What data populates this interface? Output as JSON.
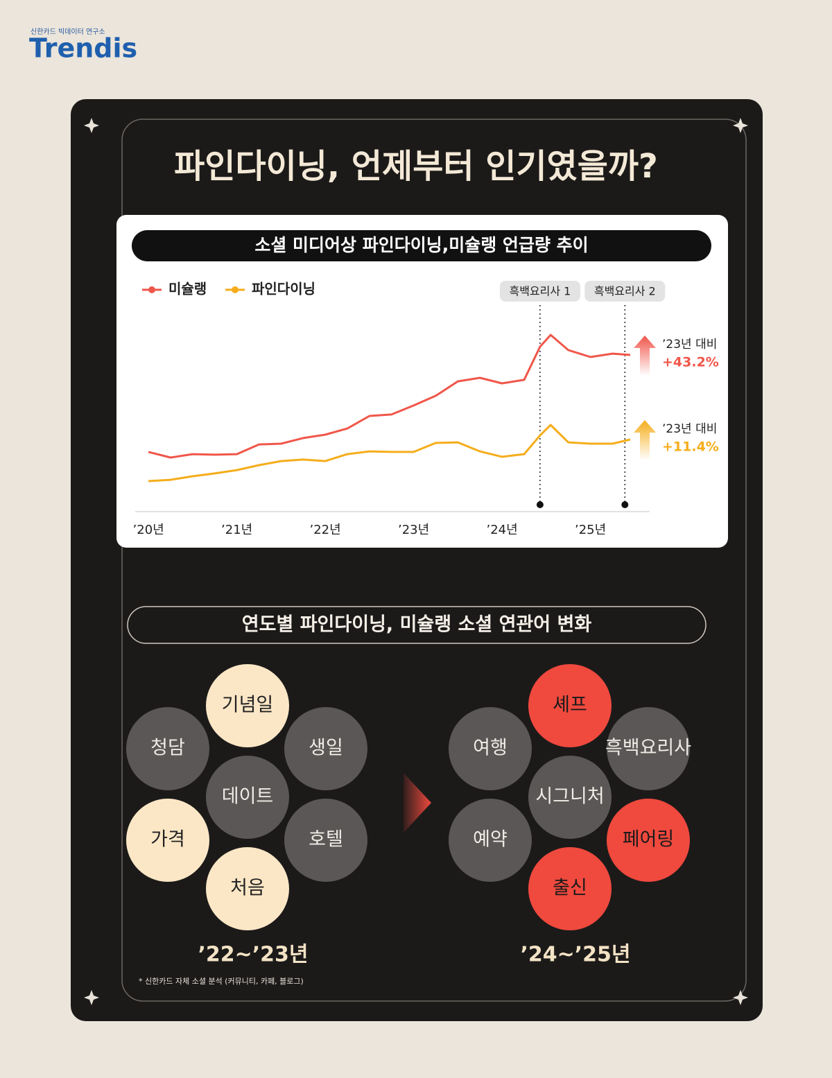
{
  "header": {
    "org": "신한카드 빅데이터 연구소",
    "brand": "Trendis"
  },
  "title": "파인다이닝, 언제부터 인기였을까?",
  "chart_data": {
    "type": "line",
    "title": "소셜 미디어상 파인다이닝,미슐랭 언급량 추이",
    "xlim": [
      2019.85,
      2025.67
    ],
    "xticks": [
      {
        "value": 2020,
        "label": "’20년"
      },
      {
        "value": 2021,
        "label": "’21년"
      },
      {
        "value": 2022,
        "label": "’22년"
      },
      {
        "value": 2023,
        "label": "’23년"
      },
      {
        "value": 2024,
        "label": "’24년"
      },
      {
        "value": 2025,
        "label": "’25년"
      }
    ],
    "ylim": [
      0,
      100
    ],
    "x": [
      2020.0,
      2020.25,
      2020.5,
      2020.75,
      2021.0,
      2021.25,
      2021.5,
      2021.75,
      2022.0,
      2022.25,
      2022.5,
      2022.75,
      2023.0,
      2023.25,
      2023.5,
      2023.75,
      2024.0,
      2024.25,
      2024.43,
      2024.55,
      2024.75,
      2025.0,
      2025.25,
      2025.45
    ],
    "series": [
      {
        "name": "미슐랭",
        "color": "#f0564a",
        "values": [
          31.9,
          28.9,
          30.7,
          30.4,
          30.7,
          35.9,
          36.3,
          39.3,
          41.1,
          44.4,
          51.1,
          51.9,
          56.7,
          61.9,
          69.6,
          71.5,
          68.5,
          70.4,
          88.1,
          94.4,
          86.3,
          82.6,
          84.4,
          83.7
        ],
        "change_label": "’23년 대비",
        "change": "+43.2%"
      },
      {
        "name": "파인다이닝",
        "color": "#f5ad1b",
        "values": [
          16.3,
          17.0,
          18.9,
          20.4,
          22.2,
          24.8,
          27.0,
          27.8,
          27.0,
          30.7,
          32.2,
          31.9,
          31.9,
          36.7,
          37.0,
          32.2,
          29.3,
          30.7,
          40.7,
          46.3,
          37.0,
          36.3,
          36.3,
          38.5
        ],
        "change_label": "’23년 대비",
        "change": "+11.4%"
      }
    ],
    "events": [
      {
        "label": "흑백요리사 1",
        "x": 2024.43
      },
      {
        "label": "흑백요리사 2",
        "x": 2025.39
      }
    ]
  },
  "keywords": {
    "title": "연도별 파인다이닝, 미슐랭 소셜 연관어 변화",
    "groups": [
      {
        "label": "’22~’23년",
        "words": [
          {
            "text": "기념일",
            "highlight": true
          },
          {
            "text": "청담",
            "highlight": false
          },
          {
            "text": "생일",
            "highlight": false
          },
          {
            "text": "데이트",
            "highlight": false
          },
          {
            "text": "가격",
            "highlight": true
          },
          {
            "text": "호텔",
            "highlight": false
          },
          {
            "text": "처음",
            "highlight": true
          }
        ]
      },
      {
        "label": "’24~’25년",
        "words": [
          {
            "text": "셰프",
            "highlight": true
          },
          {
            "text": "여행",
            "highlight": false
          },
          {
            "text": "흑백요리사",
            "highlight": false
          },
          {
            "text": "시그니처",
            "highlight": false
          },
          {
            "text": "예약",
            "highlight": false
          },
          {
            "text": "페어링",
            "highlight": true
          },
          {
            "text": "출신",
            "highlight": true
          }
        ]
      }
    ]
  },
  "footnote": "* 신한카드 자체 소셜 분석 (커뮤니티, 카페, 블로그)"
}
